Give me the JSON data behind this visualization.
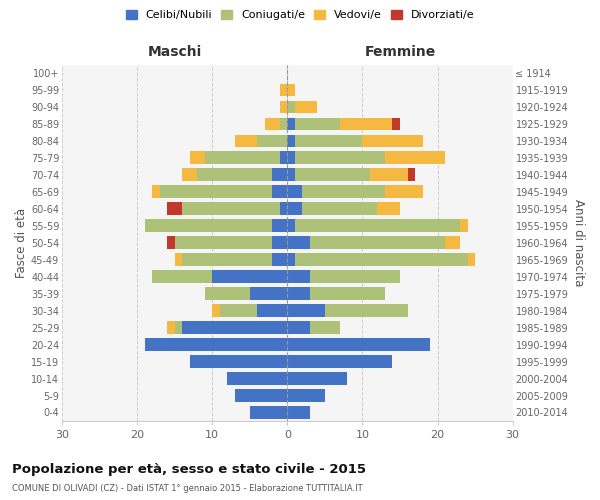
{
  "age_groups": [
    "100+",
    "95-99",
    "90-94",
    "85-89",
    "80-84",
    "75-79",
    "70-74",
    "65-69",
    "60-64",
    "55-59",
    "50-54",
    "45-49",
    "40-44",
    "35-39",
    "30-34",
    "25-29",
    "20-24",
    "15-19",
    "10-14",
    "5-9",
    "0-4"
  ],
  "birth_years": [
    "≤ 1914",
    "1915-1919",
    "1920-1924",
    "1925-1929",
    "1930-1934",
    "1935-1939",
    "1940-1944",
    "1945-1949",
    "1950-1954",
    "1955-1959",
    "1960-1964",
    "1965-1969",
    "1970-1974",
    "1975-1979",
    "1980-1984",
    "1985-1989",
    "1990-1994",
    "1995-1999",
    "2000-2004",
    "2005-2009",
    "2010-2014"
  ],
  "maschi": {
    "celibe": [
      0,
      0,
      0,
      0,
      0,
      1,
      2,
      2,
      1,
      2,
      2,
      2,
      10,
      5,
      4,
      14,
      19,
      13,
      8,
      7,
      5
    ],
    "coniugato": [
      0,
      0,
      0,
      1,
      4,
      10,
      10,
      15,
      13,
      17,
      13,
      12,
      8,
      6,
      5,
      1,
      0,
      0,
      0,
      0,
      0
    ],
    "vedovo": [
      0,
      1,
      1,
      2,
      3,
      2,
      2,
      1,
      0,
      0,
      0,
      1,
      0,
      0,
      1,
      1,
      0,
      0,
      0,
      0,
      0
    ],
    "divorziato": [
      0,
      0,
      0,
      0,
      0,
      0,
      0,
      0,
      2,
      0,
      1,
      0,
      0,
      0,
      0,
      0,
      0,
      0,
      0,
      0,
      0
    ]
  },
  "femmine": {
    "nubile": [
      0,
      0,
      0,
      1,
      1,
      1,
      1,
      2,
      2,
      1,
      3,
      1,
      3,
      3,
      5,
      3,
      19,
      14,
      8,
      5,
      3
    ],
    "coniugata": [
      0,
      0,
      1,
      6,
      9,
      12,
      10,
      11,
      10,
      22,
      18,
      23,
      12,
      10,
      11,
      4,
      0,
      0,
      0,
      0,
      0
    ],
    "vedova": [
      0,
      1,
      3,
      7,
      8,
      8,
      5,
      5,
      3,
      1,
      2,
      1,
      0,
      0,
      0,
      0,
      0,
      0,
      0,
      0,
      0
    ],
    "divorziata": [
      0,
      0,
      0,
      1,
      0,
      0,
      1,
      0,
      0,
      0,
      0,
      0,
      0,
      0,
      0,
      0,
      0,
      0,
      0,
      0,
      0
    ]
  },
  "colors": {
    "celibe": "#4472c4",
    "coniugato": "#adc178",
    "vedovo": "#f5b942",
    "divorziato": "#c0392b"
  },
  "title": "Popolazione per età, sesso e stato civile - 2015",
  "subtitle": "COMUNE DI OLIVADI (CZ) - Dati ISTAT 1° gennaio 2015 - Elaborazione TUTTITALIA.IT",
  "xlabel_left": "Maschi",
  "xlabel_right": "Femmine",
  "ylabel_left": "Fasce di età",
  "ylabel_right": "Anni di nascita",
  "xlim": 30,
  "bg_color": "#f5f5f5",
  "grid_color": "#cccccc"
}
